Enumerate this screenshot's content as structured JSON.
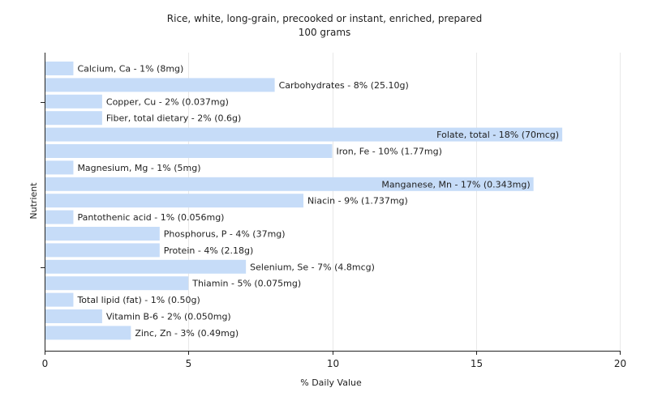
{
  "chart_data": {
    "type": "bar",
    "orientation": "horizontal",
    "title": "Rice, white, long-grain, precooked or instant, enriched, prepared",
    "subtitle": "100 grams",
    "xlabel": "% Daily Value",
    "ylabel": "Nutrient",
    "xlim": [
      0,
      20
    ],
    "xticks": [
      0,
      5,
      10,
      15,
      20
    ],
    "grid": true,
    "bar_color": "#c6dcf8",
    "categories": [
      "Calcium, Ca",
      "Carbohydrates",
      "Copper, Cu",
      "Fiber, total dietary",
      "Folate, total",
      "Iron, Fe",
      "Magnesium, Mg",
      "Manganese, Mn",
      "Niacin",
      "Pantothenic acid",
      "Phosphorus, P",
      "Protein",
      "Selenium, Se",
      "Thiamin",
      "Total lipid (fat)",
      "Vitamin B-6",
      "Zinc, Zn"
    ],
    "values": [
      1,
      8,
      2,
      2,
      18,
      10,
      1,
      17,
      9,
      1,
      4,
      4,
      7,
      5,
      1,
      2,
      3
    ],
    "labels": [
      "Calcium, Ca - 1% (8mg)",
      "Carbohydrates - 8% (25.10g)",
      "Copper, Cu - 2% (0.037mg)",
      "Fiber, total dietary - 2% (0.6g)",
      "Folate, total - 18% (70mcg)",
      "Iron, Fe - 10% (1.77mg)",
      "Magnesium, Mg - 1% (5mg)",
      "Manganese, Mn - 17% (0.343mg)",
      "Niacin - 9% (1.737mg)",
      "Pantothenic acid - 1% (0.056mg)",
      "Phosphorus, P - 4% (37mg)",
      "Protein - 4% (2.18g)",
      "Selenium, Se - 7% (4.8mcg)",
      "Thiamin - 5% (0.075mg)",
      "Total lipid (fat) - 1% (0.50g)",
      "Vitamin B-6 - 2% (0.050mg)",
      "Zinc, Zn - 3% (0.49mg)"
    ]
  }
}
